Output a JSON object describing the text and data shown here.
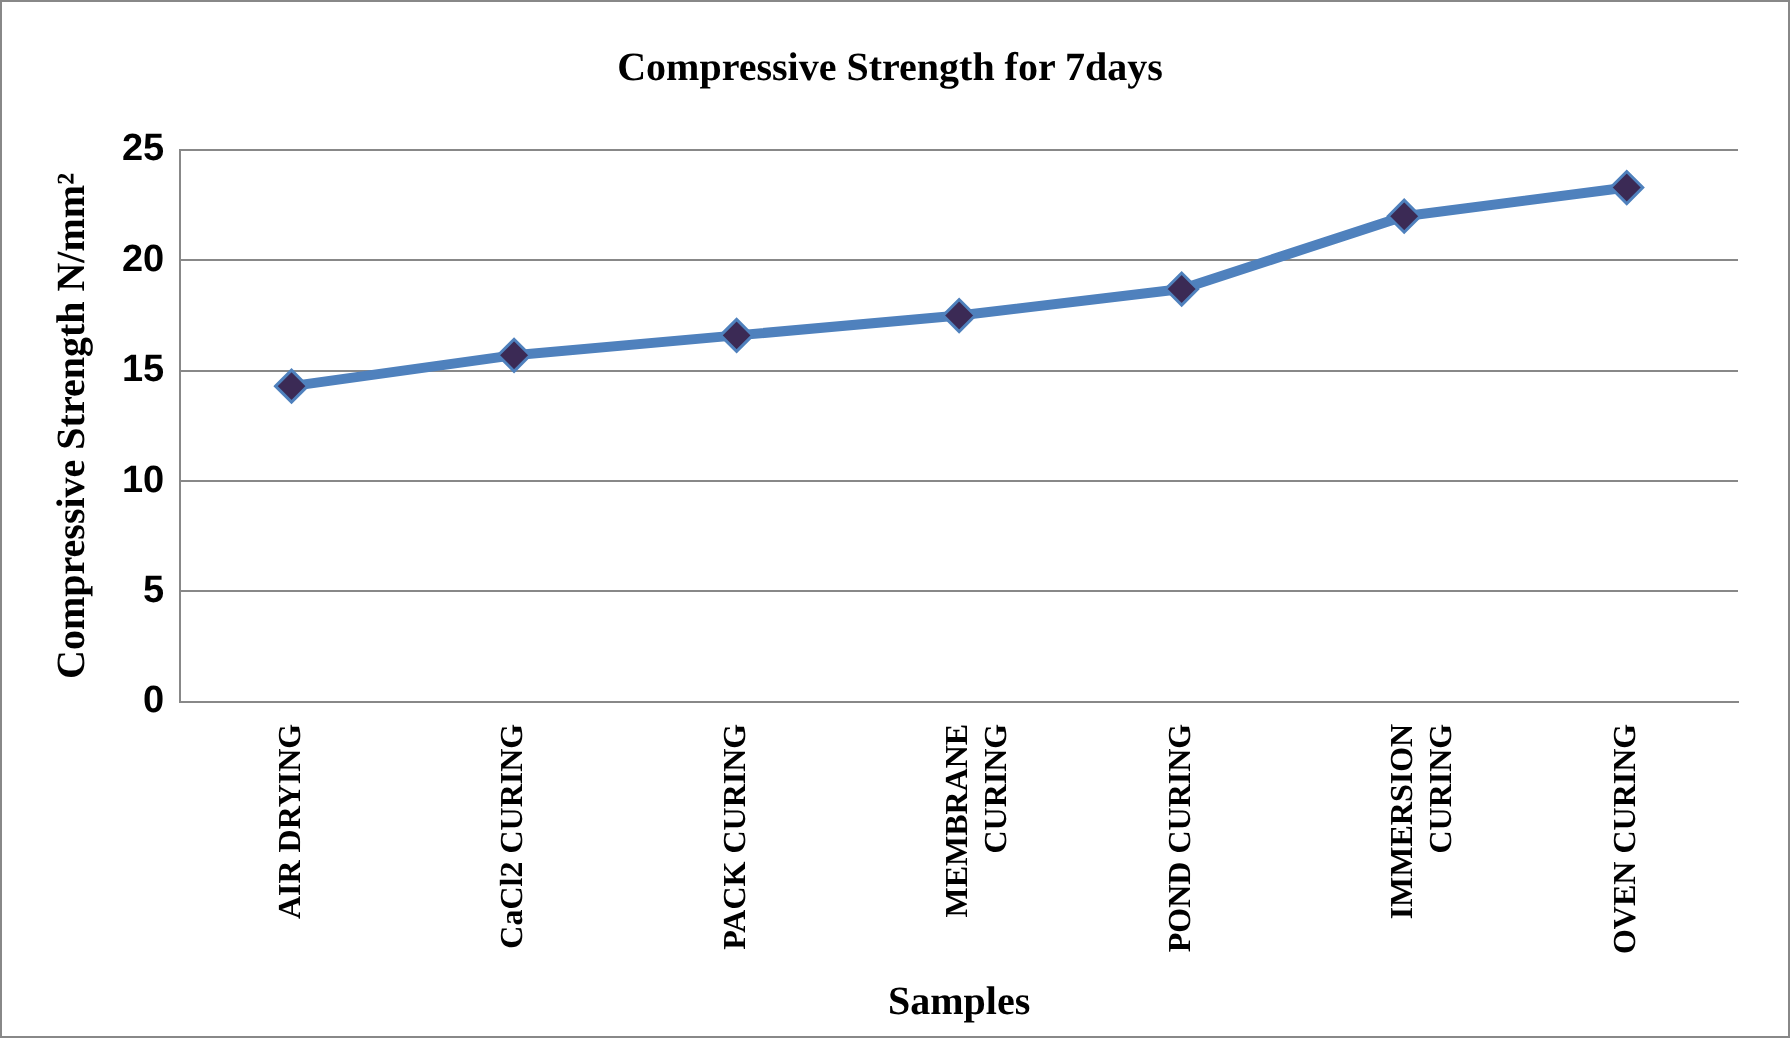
{
  "chart_data": {
    "type": "line",
    "title": "Compressive Strength for 7days",
    "xlabel": "Samples",
    "ylabel": "Compressive Strength N/mm²",
    "categories": [
      "AIR DRYING",
      "CaCl2 CURING",
      "PACK CURING",
      "MEMBRANE\nCURING",
      "POND CURING",
      "IMMERSION\nCURING",
      "OVEN CURING"
    ],
    "series": [
      {
        "color": "#4f81bd",
        "values": [
          14.3,
          15.7,
          16.6,
          17.5,
          18.7,
          22.0,
          23.3
        ]
      }
    ],
    "ylim": [
      0,
      25
    ],
    "yticks": [
      0,
      5,
      10,
      15,
      20,
      25
    ],
    "grid": "y",
    "legend": false,
    "marker": "diamond",
    "line_style": "solid"
  }
}
